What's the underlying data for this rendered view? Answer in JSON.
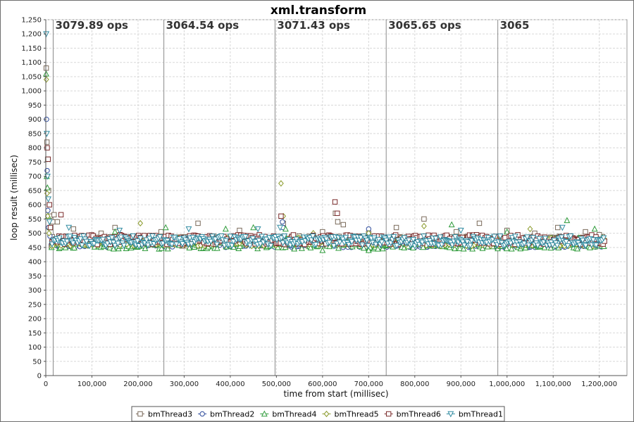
{
  "chart_data": {
    "type": "scatter",
    "title": "xml.transform",
    "xlabel": "time from start (millisec)",
    "ylabel": "loop result (millisec)",
    "xlim": [
      0,
      1260000
    ],
    "ylim": [
      0,
      1250
    ],
    "x_ticks": [
      0,
      100000,
      200000,
      300000,
      400000,
      500000,
      600000,
      700000,
      800000,
      900000,
      1000000,
      1100000,
      1200000
    ],
    "x_tick_labels": [
      "0",
      "100,000",
      "200,000",
      "300,000",
      "400,000",
      "500,000",
      "600,000",
      "700,000",
      "800,000",
      "900,000",
      "1,000,000",
      "1,100,000",
      "1,200,000"
    ],
    "y_ticks": [
      0,
      50,
      100,
      150,
      200,
      250,
      300,
      350,
      400,
      450,
      500,
      550,
      600,
      650,
      700,
      750,
      800,
      850,
      900,
      950,
      1000,
      1050,
      1100,
      1150,
      1200,
      1250
    ],
    "y_tick_labels": [
      "0",
      "50",
      "100",
      "150",
      "200",
      "250",
      "300",
      "350",
      "400",
      "450",
      "500",
      "550",
      "600",
      "650",
      "700",
      "750",
      "800",
      "850",
      "900",
      "950",
      "1,000",
      "1,050",
      "1,100",
      "1,150",
      "1,200",
      "1,250"
    ],
    "grid": true,
    "legend_position": "bottom",
    "phase_markers": [
      {
        "x": 16000,
        "label": "3079.89 ops"
      },
      {
        "x": 256000,
        "label": "3064.54 ops"
      },
      {
        "x": 497000,
        "label": "3071.43 ops"
      },
      {
        "x": 738000,
        "label": "3065.65 ops"
      },
      {
        "x": 980000,
        "label": "3065"
      }
    ],
    "series": [
      {
        "name": "bmThread3",
        "marker": "square",
        "color": "#7a6a5a",
        "fill": "#ffffff",
        "points": [
          [
            1000,
            1080
          ],
          [
            2500,
            820
          ],
          [
            4000,
            760
          ],
          [
            6000,
            650
          ],
          [
            9000,
            560
          ],
          [
            15000,
            540
          ],
          [
            18000,
            565
          ],
          [
            25000,
            540
          ],
          [
            60000,
            515
          ],
          [
            120000,
            500
          ],
          [
            150000,
            520
          ],
          [
            250000,
            505
          ],
          [
            330000,
            535
          ],
          [
            420000,
            510
          ],
          [
            515000,
            535
          ],
          [
            600000,
            505
          ],
          [
            628000,
            570
          ],
          [
            633000,
            540
          ],
          [
            645000,
            530
          ],
          [
            700000,
            500
          ],
          [
            760000,
            520
          ],
          [
            820000,
            550
          ],
          [
            890000,
            505
          ],
          [
            940000,
            535
          ],
          [
            1000000,
            510
          ],
          [
            1060000,
            500
          ],
          [
            1110000,
            520
          ],
          [
            1170000,
            505
          ],
          [
            1200000,
            495
          ]
        ],
        "band": [
          455,
          490
        ]
      },
      {
        "name": "bmThread2",
        "marker": "circle",
        "color": "#2e4b9b",
        "fill": "#ffffff",
        "points": [
          [
            1500,
            900
          ],
          [
            3000,
            720
          ],
          [
            4500,
            580
          ],
          [
            6000,
            520
          ],
          [
            9000,
            490
          ],
          [
            513000,
            540
          ],
          [
            514000,
            520
          ],
          [
            700000,
            515
          ],
          [
            760000,
            455
          ],
          [
            800000,
            450
          ],
          [
            840000,
            455
          ],
          [
            900000,
            460
          ],
          [
            950000,
            455
          ],
          [
            1000000,
            460
          ],
          [
            1050000,
            455
          ],
          [
            1100000,
            450
          ],
          [
            1150000,
            455
          ],
          [
            1200000,
            455
          ]
        ],
        "band": [
          450,
          480
        ]
      },
      {
        "name": "bmThread4",
        "marker": "triangle-up",
        "color": "#2e9b3a",
        "fill": "#ffffff",
        "points": [
          [
            800,
            1060
          ],
          [
            2000,
            700
          ],
          [
            3500,
            660
          ],
          [
            5000,
            560
          ],
          [
            9000,
            520
          ],
          [
            150000,
            505
          ],
          [
            260000,
            520
          ],
          [
            390000,
            515
          ],
          [
            450000,
            520
          ],
          [
            520000,
            515
          ],
          [
            600000,
            440
          ],
          [
            700000,
            440
          ],
          [
            720000,
            445
          ],
          [
            880000,
            530
          ],
          [
            1000000,
            505
          ],
          [
            1130000,
            545
          ],
          [
            1190000,
            515
          ]
        ],
        "band": [
          445,
          485
        ]
      },
      {
        "name": "bmThread5",
        "marker": "diamond",
        "color": "#8a9a2a",
        "fill": "#ffffff",
        "points": [
          [
            1200,
            1040
          ],
          [
            2800,
            640
          ],
          [
            4200,
            560
          ],
          [
            7000,
            500
          ],
          [
            205000,
            535
          ],
          [
            510000,
            675
          ],
          [
            515000,
            560
          ],
          [
            580000,
            500
          ],
          [
            700000,
            500
          ],
          [
            820000,
            525
          ],
          [
            1050000,
            515
          ]
        ],
        "band": [
          455,
          485
        ]
      },
      {
        "name": "bmThread6",
        "marker": "square",
        "color": "#7a2a2a",
        "fill": "#ffffff",
        "points": [
          [
            3000,
            800
          ],
          [
            5000,
            760
          ],
          [
            8000,
            600
          ],
          [
            10000,
            520
          ],
          [
            33000,
            565
          ],
          [
            510000,
            560
          ],
          [
            627000,
            610
          ],
          [
            632000,
            570
          ]
        ],
        "band": [
          460,
          495
        ]
      },
      {
        "name": "bmThread1",
        "marker": "triangle-down",
        "color": "#2e8aa0",
        "fill": "#ffffff",
        "points": [
          [
            1000,
            1200
          ],
          [
            2200,
            850
          ],
          [
            3800,
            700
          ],
          [
            5500,
            620
          ],
          [
            8000,
            540
          ],
          [
            50000,
            520
          ],
          [
            160000,
            510
          ],
          [
            310000,
            515
          ],
          [
            460000,
            515
          ],
          [
            508000,
            520
          ],
          [
            900000,
            510
          ],
          [
            1120000,
            520
          ]
        ],
        "band": [
          455,
          490
        ]
      }
    ]
  }
}
